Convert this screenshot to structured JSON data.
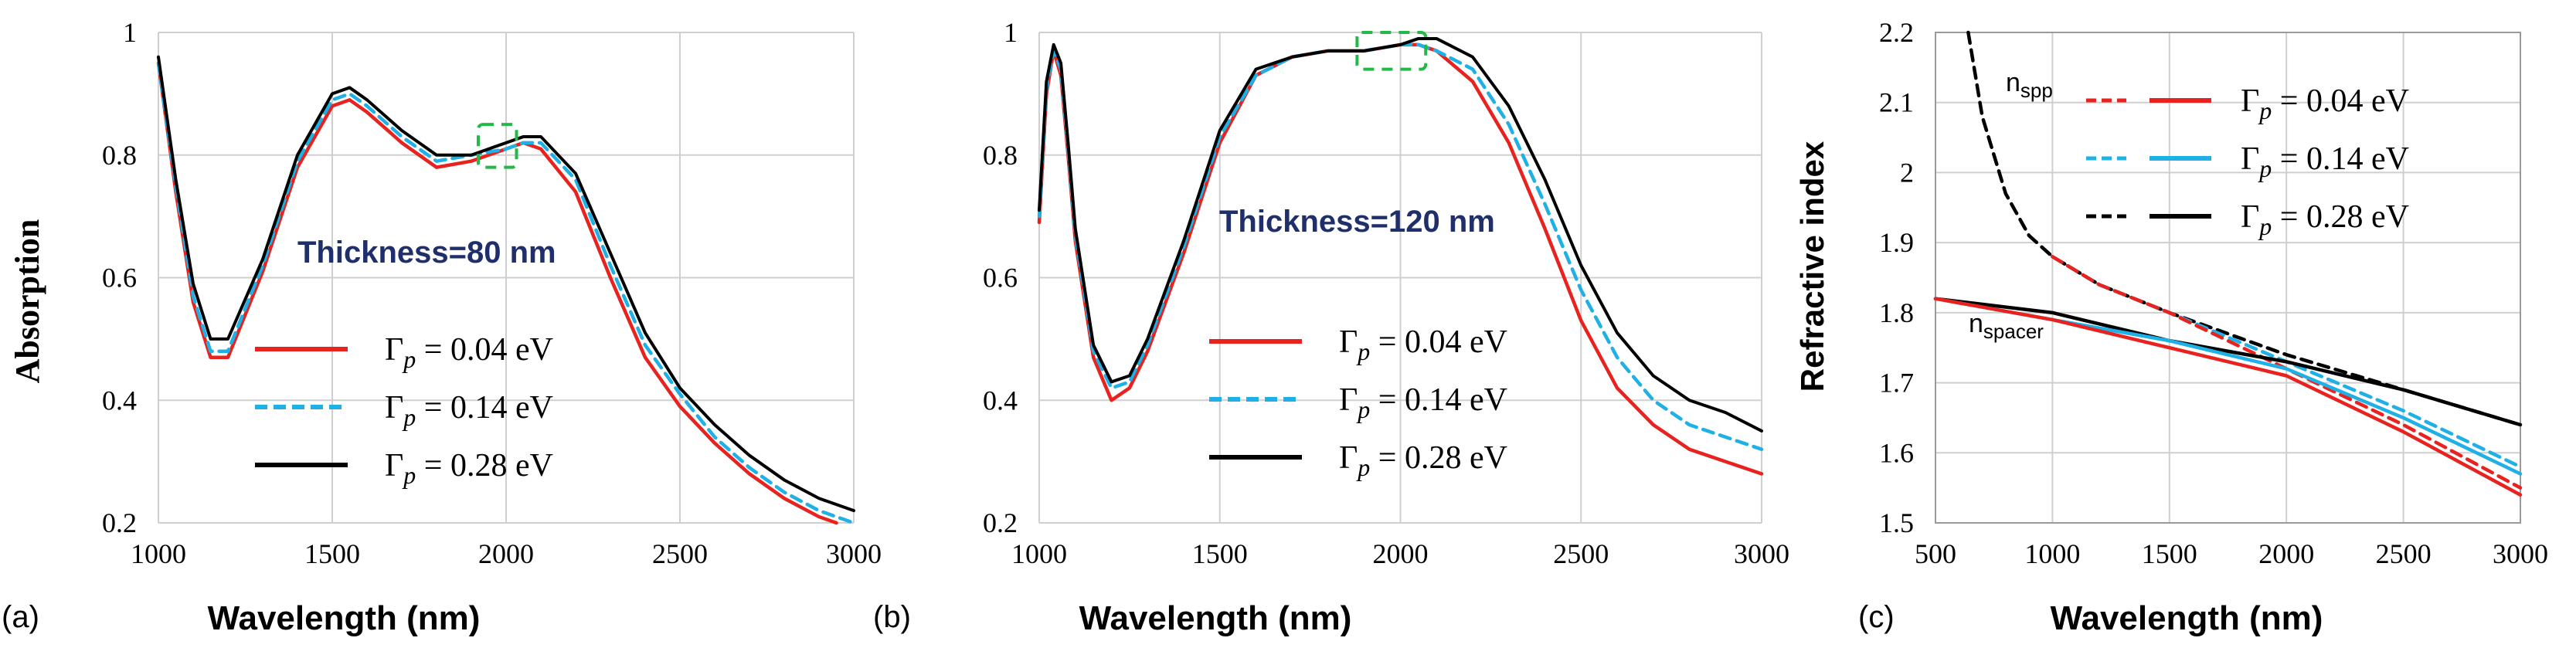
{
  "chart_data": [
    {
      "type": "line",
      "panel_label": "(a)",
      "xlabel": "Wavelength (nm)",
      "ylabel": "Absorption",
      "xlim": [
        1000,
        3000
      ],
      "ylim": [
        0.2,
        1
      ],
      "xticks": [
        1000,
        1500,
        2000,
        2500,
        3000
      ],
      "yticks": [
        0.2,
        0.4,
        0.6,
        0.8,
        1
      ],
      "ytick_labels": [
        "0.2",
        "0.4",
        "0.6",
        "0.8",
        "1"
      ],
      "grid": true,
      "annotation": "Thickness=80 nm",
      "legend": [
        {
          "gamma": "0.04 eV",
          "color": "#e8231f",
          "dash": "solid"
        },
        {
          "gamma": "0.14 eV",
          "color": "#1fb0e6",
          "dash": "dashed"
        },
        {
          "gamma": "0.28 eV",
          "color": "#000000",
          "dash": "solid"
        }
      ],
      "series": [
        {
          "name": "Γp = 0.04 eV",
          "color": "#e8231f",
          "dash": "solid",
          "x": [
            1000,
            1050,
            1100,
            1150,
            1200,
            1300,
            1400,
            1500,
            1550,
            1600,
            1700,
            1800,
            1900,
            2000,
            2050,
            2100,
            2200,
            2300,
            2400,
            2500,
            2600,
            2700,
            2800,
            2900,
            2950
          ],
          "y": [
            0.95,
            0.74,
            0.56,
            0.47,
            0.47,
            0.61,
            0.78,
            0.88,
            0.89,
            0.87,
            0.82,
            0.78,
            0.79,
            0.81,
            0.82,
            0.81,
            0.74,
            0.6,
            0.47,
            0.39,
            0.33,
            0.28,
            0.24,
            0.21,
            0.2
          ]
        },
        {
          "name": "Γp = 0.14 eV",
          "color": "#1fb0e6",
          "dash": "dashed",
          "x": [
            1000,
            1050,
            1100,
            1150,
            1200,
            1300,
            1400,
            1500,
            1550,
            1600,
            1700,
            1800,
            1900,
            2000,
            2050,
            2100,
            2200,
            2300,
            2400,
            2500,
            2600,
            2700,
            2800,
            2900,
            3000
          ],
          "y": [
            0.95,
            0.75,
            0.57,
            0.48,
            0.48,
            0.62,
            0.79,
            0.89,
            0.9,
            0.88,
            0.83,
            0.79,
            0.8,
            0.81,
            0.82,
            0.82,
            0.76,
            0.62,
            0.49,
            0.41,
            0.34,
            0.29,
            0.25,
            0.22,
            0.2
          ]
        },
        {
          "name": "Γp = 0.28 eV",
          "color": "#000000",
          "dash": "solid",
          "x": [
            1000,
            1050,
            1100,
            1150,
            1200,
            1300,
            1400,
            1500,
            1550,
            1600,
            1700,
            1800,
            1900,
            2000,
            2050,
            2100,
            2200,
            2300,
            2400,
            2500,
            2600,
            2700,
            2800,
            2900,
            3000
          ],
          "y": [
            0.96,
            0.76,
            0.59,
            0.5,
            0.5,
            0.63,
            0.8,
            0.9,
            0.91,
            0.89,
            0.84,
            0.8,
            0.8,
            0.82,
            0.83,
            0.83,
            0.77,
            0.64,
            0.51,
            0.42,
            0.36,
            0.31,
            0.27,
            0.24,
            0.22
          ]
        }
      ],
      "highlight_box": {
        "x": [
          1920,
          2030
        ],
        "y": [
          0.78,
          0.85
        ]
      }
    },
    {
      "type": "line",
      "panel_label": "(b)",
      "xlabel": "Wavelength (nm)",
      "ylabel": "",
      "xlim": [
        1000,
        3000
      ],
      "ylim": [
        0.2,
        1
      ],
      "xticks": [
        1000,
        1500,
        2000,
        2500,
        3000
      ],
      "yticks": [
        0.2,
        0.4,
        0.6,
        0.8,
        1
      ],
      "ytick_labels": [
        "0.2",
        "0.4",
        "0.6",
        "0.8",
        "1"
      ],
      "grid": true,
      "annotation": "Thickness=120 nm",
      "legend": [
        {
          "gamma": "0.04 eV",
          "color": "#e8231f",
          "dash": "solid"
        },
        {
          "gamma": "0.14 eV",
          "color": "#1fb0e6",
          "dash": "dashed"
        },
        {
          "gamma": "0.28 eV",
          "color": "#000000",
          "dash": "solid"
        }
      ],
      "series": [
        {
          "name": "Γp = 0.04 eV",
          "color": "#e8231f",
          "dash": "solid",
          "x": [
            1000,
            1020,
            1040,
            1060,
            1080,
            1100,
            1150,
            1200,
            1250,
            1300,
            1400,
            1500,
            1600,
            1700,
            1800,
            1900,
            2000,
            2050,
            2100,
            2200,
            2300,
            2400,
            2500,
            2600,
            2700,
            2800,
            2900,
            3000
          ],
          "y": [
            0.69,
            0.9,
            0.97,
            0.93,
            0.8,
            0.66,
            0.47,
            0.4,
            0.42,
            0.48,
            0.64,
            0.82,
            0.93,
            0.96,
            0.97,
            0.97,
            0.98,
            0.98,
            0.97,
            0.92,
            0.82,
            0.68,
            0.53,
            0.42,
            0.36,
            0.32,
            0.3,
            0.28
          ]
        },
        {
          "name": "Γp = 0.14 eV",
          "color": "#1fb0e6",
          "dash": "dashed",
          "x": [
            1000,
            1020,
            1040,
            1060,
            1080,
            1100,
            1150,
            1200,
            1250,
            1300,
            1400,
            1500,
            1600,
            1700,
            1800,
            1900,
            2000,
            2050,
            2100,
            2200,
            2300,
            2400,
            2500,
            2600,
            2700,
            2800,
            2900,
            3000
          ],
          "y": [
            0.7,
            0.91,
            0.97,
            0.94,
            0.81,
            0.67,
            0.48,
            0.42,
            0.43,
            0.49,
            0.65,
            0.83,
            0.93,
            0.96,
            0.97,
            0.97,
            0.98,
            0.98,
            0.97,
            0.94,
            0.85,
            0.72,
            0.58,
            0.47,
            0.4,
            0.36,
            0.34,
            0.32
          ]
        },
        {
          "name": "Γp = 0.28 eV",
          "color": "#000000",
          "dash": "solid",
          "x": [
            1000,
            1020,
            1040,
            1060,
            1080,
            1100,
            1150,
            1200,
            1250,
            1300,
            1400,
            1500,
            1600,
            1700,
            1800,
            1900,
            2000,
            2050,
            2100,
            2200,
            2300,
            2400,
            2500,
            2600,
            2700,
            2800,
            2900,
            3000
          ],
          "y": [
            0.71,
            0.92,
            0.98,
            0.95,
            0.82,
            0.68,
            0.49,
            0.43,
            0.44,
            0.5,
            0.66,
            0.84,
            0.94,
            0.96,
            0.97,
            0.97,
            0.98,
            0.99,
            0.99,
            0.96,
            0.88,
            0.76,
            0.62,
            0.51,
            0.44,
            0.4,
            0.38,
            0.35
          ]
        }
      ],
      "highlight_box": {
        "x": [
          1880,
          2070
        ],
        "y": [
          0.94,
          1.0
        ]
      }
    },
    {
      "type": "line",
      "panel_label": "(c)",
      "xlabel": "Wavelength (nm)",
      "ylabel": "Refractive index",
      "xlim": [
        500,
        3000
      ],
      "ylim": [
        1.5,
        2.2
      ],
      "xticks": [
        500,
        1000,
        1500,
        2000,
        2500,
        3000
      ],
      "yticks": [
        1.5,
        1.6,
        1.7,
        1.8,
        1.9,
        2.0,
        2.1,
        2.2
      ],
      "ytick_labels": [
        "1.5",
        "1.6",
        "1.7",
        "1.8",
        "1.9",
        "2",
        "2.1",
        "2.2"
      ],
      "grid": true,
      "curve_labels": {
        "spp": "n",
        "spp_sub": "spp",
        "spacer": "n",
        "spacer_sub": "spacer"
      },
      "legend": [
        {
          "gamma": "0.04 eV",
          "color": "#e8231f"
        },
        {
          "gamma": "0.14 eV",
          "color": "#1fb0e6"
        },
        {
          "gamma": "0.28 eV",
          "color": "#000000"
        }
      ],
      "series": [
        {
          "name": "n_spp Γp = 0.28 eV",
          "color": "#000000",
          "dash": "dashed",
          "x": [
            640,
            700,
            800,
            900,
            1000,
            1200,
            1500,
            2000,
            2500,
            3000
          ],
          "y": [
            2.2,
            2.08,
            1.97,
            1.91,
            1.88,
            1.84,
            1.8,
            1.74,
            1.69,
            1.64
          ]
        },
        {
          "name": "n_spp Γp = 0.14 eV",
          "color": "#1fb0e6",
          "dash": "dashed",
          "x": [
            1000,
            1200,
            1500,
            2000,
            2500,
            3000
          ],
          "y": [
            1.88,
            1.84,
            1.8,
            1.73,
            1.66,
            1.58
          ]
        },
        {
          "name": "n_spp Γp = 0.04 eV",
          "color": "#e8231f",
          "dash": "dashed",
          "x": [
            1000,
            1200,
            1500,
            2000,
            2500,
            3000
          ],
          "y": [
            1.88,
            1.84,
            1.8,
            1.72,
            1.64,
            1.55
          ]
        },
        {
          "name": "n_spacer Γp = 0.28 eV",
          "color": "#000000",
          "dash": "solid",
          "x": [
            500,
            1000,
            1500,
            2000,
            2500,
            3000
          ],
          "y": [
            1.82,
            1.8,
            1.76,
            1.73,
            1.69,
            1.64
          ]
        },
        {
          "name": "n_spacer Γp = 0.14 eV",
          "color": "#1fb0e6",
          "dash": "solid",
          "x": [
            500,
            1000,
            1500,
            2000,
            2500,
            3000
          ],
          "y": [
            1.82,
            1.79,
            1.76,
            1.72,
            1.65,
            1.57
          ]
        },
        {
          "name": "n_spacer Γp = 0.04 eV",
          "color": "#e8231f",
          "dash": "solid",
          "x": [
            500,
            1000,
            1500,
            2000,
            2500,
            3000
          ],
          "y": [
            1.82,
            1.79,
            1.75,
            1.71,
            1.63,
            1.54
          ]
        }
      ]
    }
  ]
}
